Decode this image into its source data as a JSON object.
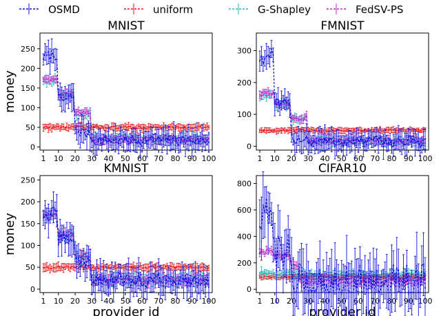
{
  "legend": [
    {
      "name": "OSMD",
      "color": "#1010e0"
    },
    {
      "name": "uniform",
      "color": "#ee1111"
    },
    {
      "name": "G-Shapley",
      "color": "#22bbbb"
    },
    {
      "name": "FedSV-PS",
      "color": "#cc22cc"
    }
  ],
  "chart_data": [
    {
      "type": "line",
      "title": "MNIST",
      "xlabel": "",
      "ylabel": "money",
      "xlim": [
        1,
        100
      ],
      "ylim": [
        -8,
        290
      ],
      "xticks": [
        1,
        10,
        20,
        30,
        40,
        50,
        60,
        70,
        80,
        90,
        100
      ],
      "yticks": [
        0,
        50,
        100,
        150,
        200,
        250
      ],
      "grid": false,
      "legend_position": "top",
      "error_bars": true,
      "series": [
        {
          "name": "OSMD",
          "color": "#1010e0",
          "levels": [
            [
              1,
              5,
              230
            ],
            [
              6,
              9,
              235
            ],
            [
              10,
              16,
              120
            ],
            [
              17,
              19,
              128
            ],
            [
              20,
              24,
              40
            ],
            [
              25,
              29,
              35
            ],
            [
              30,
              100,
              17
            ]
          ],
          "noise": 14,
          "err": 24
        },
        {
          "name": "uniform",
          "color": "#ee1111",
          "levels": [
            [
              1,
              100,
              50
            ]
          ],
          "noise": 3,
          "err": 7
        },
        {
          "name": "G-Shapley",
          "color": "#22bbbb",
          "levels": [
            [
              1,
              9,
              170
            ],
            [
              10,
              19,
              132
            ],
            [
              20,
              29,
              85
            ],
            [
              30,
              100,
              20
            ]
          ],
          "noise": 6,
          "err": 9
        },
        {
          "name": "FedSV-PS",
          "color": "#cc22cc",
          "levels": [
            [
              1,
              9,
              175
            ],
            [
              10,
              19,
              135
            ],
            [
              20,
              29,
              87
            ],
            [
              30,
              100,
              18
            ]
          ],
          "noise": 6,
          "err": 9
        }
      ]
    },
    {
      "type": "line",
      "title": "FMNIST",
      "xlabel": "",
      "ylabel": "",
      "xlim": [
        1,
        100
      ],
      "ylim": [
        -12,
        355
      ],
      "xticks": [
        1,
        10,
        20,
        30,
        40,
        50,
        60,
        70,
        80,
        90,
        100
      ],
      "yticks": [
        0,
        100,
        200,
        300
      ],
      "grid": false,
      "legend_position": "top",
      "error_bars": true,
      "series": [
        {
          "name": "OSMD",
          "color": "#1010e0",
          "levels": [
            [
              1,
              5,
              275
            ],
            [
              6,
              9,
              290
            ],
            [
              10,
              19,
              130
            ],
            [
              20,
              29,
              25
            ],
            [
              30,
              100,
              15
            ]
          ],
          "noise": 18,
          "err": 28
        },
        {
          "name": "uniform",
          "color": "#ee1111",
          "levels": [
            [
              1,
              100,
              50
            ]
          ],
          "noise": 3,
          "err": 7
        },
        {
          "name": "G-Shapley",
          "color": "#22bbbb",
          "levels": [
            [
              1,
              9,
              160
            ],
            [
              10,
              19,
              130
            ],
            [
              20,
              29,
              85
            ],
            [
              30,
              100,
              15
            ]
          ],
          "noise": 8,
          "err": 10
        },
        {
          "name": "FedSV-PS",
          "color": "#cc22cc",
          "levels": [
            [
              1,
              9,
              165
            ],
            [
              10,
              19,
              135
            ],
            [
              20,
              29,
              88
            ],
            [
              30,
              100,
              17
            ]
          ],
          "noise": 8,
          "err": 10
        }
      ]
    },
    {
      "type": "line",
      "title": "KMNIST",
      "xlabel": "provider id",
      "ylabel": "money",
      "xlim": [
        1,
        100
      ],
      "ylim": [
        -8,
        260
      ],
      "xticks": [
        1,
        10,
        20,
        30,
        40,
        50,
        60,
        70,
        80,
        90,
        100
      ],
      "yticks": [
        0,
        50,
        100,
        150,
        200,
        250
      ],
      "grid": false,
      "legend_position": "top",
      "error_bars": true,
      "series": [
        {
          "name": "OSMD",
          "color": "#1010e0",
          "levels": [
            [
              1,
              9,
              170
            ],
            [
              10,
              19,
              115
            ],
            [
              20,
              29,
              65
            ],
            [
              30,
              100,
              20
            ]
          ],
          "noise": 18,
          "err": 26
        },
        {
          "name": "uniform",
          "color": "#ee1111",
          "levels": [
            [
              1,
              100,
              50
            ]
          ],
          "noise": 3,
          "err": 7
        },
        {
          "name": "G-Shapley",
          "color": "#22bbbb",
          "levels": [
            [
              1,
              9,
              170
            ],
            [
              10,
              19,
              125
            ],
            [
              20,
              29,
              75
            ],
            [
              30,
              100,
              22
            ]
          ],
          "noise": 7,
          "err": 10
        },
        {
          "name": "FedSV-PS",
          "color": "#cc22cc",
          "levels": [
            [
              1,
              9,
              172
            ],
            [
              10,
              19,
              125
            ],
            [
              20,
              29,
              78
            ],
            [
              30,
              100,
              20
            ]
          ],
          "noise": 7,
          "err": 10
        }
      ]
    },
    {
      "type": "line",
      "title": "CIFAR10",
      "xlabel": "provider id",
      "ylabel": "",
      "xlim": [
        1,
        100
      ],
      "ylim": [
        -25,
        860
      ],
      "xticks": [
        1,
        10,
        20,
        30,
        40,
        50,
        60,
        70,
        80,
        90,
        100
      ],
      "yticks": [
        0,
        200,
        400,
        600,
        800
      ],
      "grid": false,
      "legend_position": "top",
      "error_bars": true,
      "series": [
        {
          "name": "OSMD",
          "color": "#1010e0",
          "levels": [
            [
              1,
              9,
              520
            ],
            [
              10,
              19,
              300
            ],
            [
              20,
              100,
              30
            ]
          ],
          "noise": 160,
          "err": 170
        },
        {
          "name": "uniform",
          "color": "#ee1111",
          "levels": [
            [
              1,
              100,
              95
            ]
          ],
          "noise": 6,
          "err": 14
        },
        {
          "name": "G-Shapley",
          "color": "#22bbbb",
          "levels": [
            [
              1,
              19,
              120
            ],
            [
              20,
              100,
              110
            ]
          ],
          "noise": 15,
          "err": 25
        },
        {
          "name": "FedSV-PS",
          "color": "#cc22cc",
          "levels": [
            [
              1,
              9,
              280
            ],
            [
              10,
              19,
              260
            ],
            [
              20,
              24,
              180
            ],
            [
              25,
              100,
              60
            ]
          ],
          "noise": 18,
          "err": 25
        }
      ]
    }
  ]
}
